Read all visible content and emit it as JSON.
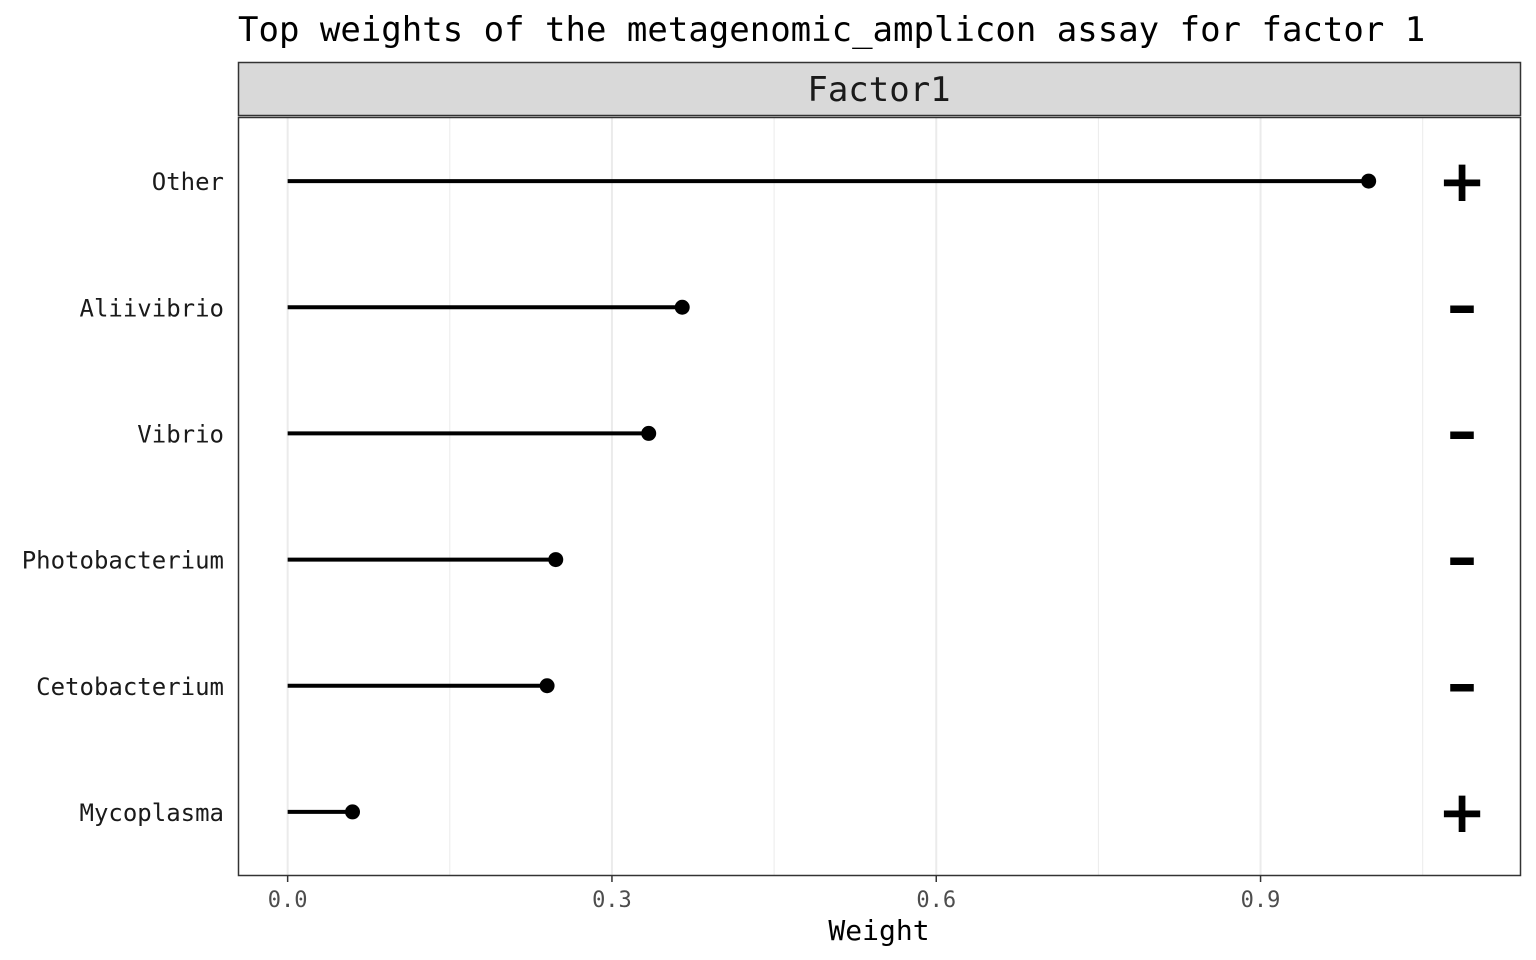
{
  "chart_data": {
    "type": "lollipop",
    "title": "Top weights of the metagenomic_amplicon assay for factor 1",
    "facet_label": "Factor1",
    "xlabel": "Weight",
    "ylabel": "",
    "xlim": [
      -0.045,
      1.14
    ],
    "xticks": [
      0.0,
      0.3,
      0.6,
      0.9
    ],
    "xtick_labels": [
      "0.0",
      "0.3",
      "0.6",
      "0.9"
    ],
    "grid": true,
    "points": [
      {
        "feature": "Other",
        "weight": 1.0,
        "sign": "+"
      },
      {
        "feature": "Aliivibrio",
        "weight": 0.365,
        "sign": "-"
      },
      {
        "feature": "Vibrio",
        "weight": 0.334,
        "sign": "-"
      },
      {
        "feature": "Photobacterium",
        "weight": 0.248,
        "sign": "-"
      },
      {
        "feature": "Cetobacterium",
        "weight": 0.24,
        "sign": "-"
      },
      {
        "feature": "Mycoplasma",
        "weight": 0.06,
        "sign": "+"
      }
    ],
    "colors": {
      "stem": "#000000",
      "point": "#000000",
      "strip_fill": "#d9d9d9",
      "grid": "#ebebeb",
      "panel_border": "#333333"
    }
  }
}
